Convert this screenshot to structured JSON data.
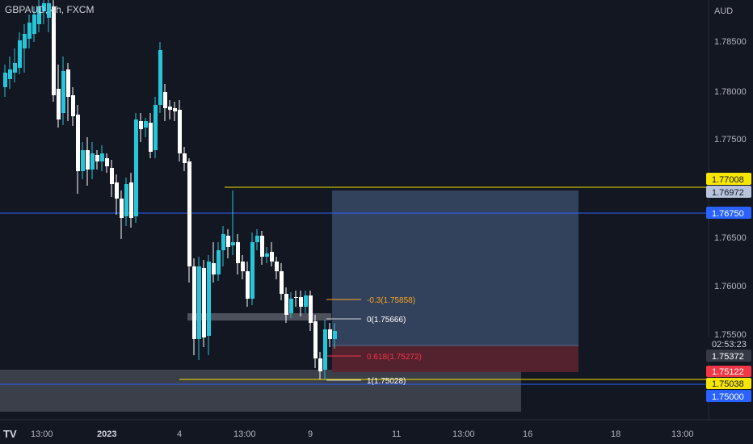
{
  "header": {
    "symbol": "GBPAUD, 4h, FXCM"
  },
  "price_axis": {
    "currency": "AUD",
    "ticks": [
      "1.78500",
      "1.78000",
      "1.77500",
      "1.76500",
      "1.76000",
      "1.75500"
    ]
  },
  "time_axis": {
    "labels": [
      "13:00",
      "2023",
      "4",
      "13:00",
      "9",
      "11",
      "13:00",
      "16",
      "18",
      "13:00"
    ]
  },
  "price_tags": [
    {
      "text": "1.77008",
      "bg": "#f7e600",
      "fg": "#131722"
    },
    {
      "text": "1.76972",
      "bg": "#b8c4dc",
      "fg": "#131722"
    },
    {
      "text": "1.76750",
      "bg": "#2962ff",
      "fg": "#ffffff"
    },
    {
      "text": "02:53:23",
      "bg": "#131722",
      "fg": "#d1d4dc"
    },
    {
      "text": "1.75372",
      "bg": "#363a45",
      "fg": "#ffffff"
    },
    {
      "text": "1.75122",
      "bg": "#f23645",
      "fg": "#ffffff"
    },
    {
      "text": "1.75038",
      "bg": "#f7e600",
      "fg": "#131722"
    },
    {
      "text": "1.75000",
      "bg": "#2962ff",
      "fg": "#ffffff"
    }
  ],
  "fib_labels": {
    "minus03": "-0.3(1.75858)",
    "zero": "0(1.75666)",
    "f618": "0.618(1.75272)",
    "one": "1(1.75028)"
  },
  "colors": {
    "background": "#131722",
    "bull": "#26c6da",
    "bear": "#ffffff",
    "fib_orange": "#f5a623",
    "fib_red": "#f23645",
    "line_yellow": "#f7e600",
    "line_blue": "#2962ff"
  },
  "logo": "TV"
}
